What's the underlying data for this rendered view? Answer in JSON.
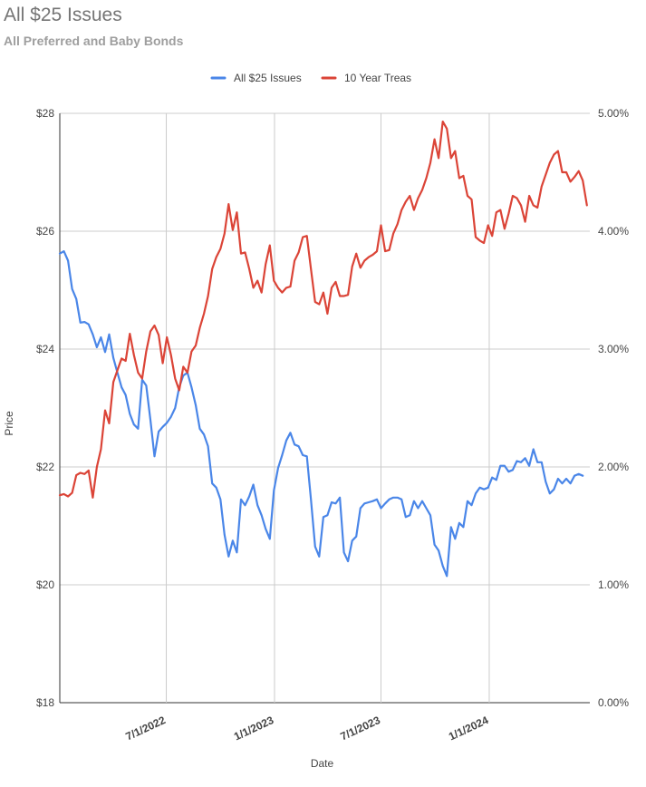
{
  "chart_data": {
    "type": "line",
    "title": "All $25 Issues",
    "subtitle": "All Preferred and Baby Bonds",
    "xlabel": "Date",
    "ylabel": "Price",
    "legend": "top",
    "grid": true,
    "x_range": [
      "2022-01-01",
      "2024-06-20"
    ],
    "x_ticks": [
      "7/1/2022",
      "1/1/2023",
      "7/1/2023",
      "1/1/2024"
    ],
    "y_left": {
      "range": [
        18,
        28
      ],
      "ticks": [
        "$18",
        "$20",
        "$22",
        "$24",
        "$26",
        "$28"
      ]
    },
    "y_right": {
      "range": [
        0.0,
        5.0
      ],
      "ticks": [
        "0.00%",
        "1.00%",
        "2.00%",
        "3.00%",
        "4.00%",
        "5.00%"
      ]
    },
    "series": [
      {
        "name": "All $25 Issues",
        "axis": "left",
        "color": "#4a86e8",
        "points": [
          [
            "2022-01-01",
            25.62
          ],
          [
            "2022-01-08",
            25.66
          ],
          [
            "2022-01-15",
            25.5
          ],
          [
            "2022-01-22",
            25.02
          ],
          [
            "2022-01-29",
            24.85
          ],
          [
            "2022-02-05",
            24.45
          ],
          [
            "2022-02-12",
            24.46
          ],
          [
            "2022-02-19",
            24.42
          ],
          [
            "2022-02-26",
            24.25
          ],
          [
            "2022-03-05",
            24.03
          ],
          [
            "2022-03-12",
            24.2
          ],
          [
            "2022-03-19",
            23.95
          ],
          [
            "2022-03-26",
            24.25
          ],
          [
            "2022-04-02",
            23.85
          ],
          [
            "2022-04-09",
            23.6
          ],
          [
            "2022-04-16",
            23.35
          ],
          [
            "2022-04-23",
            23.22
          ],
          [
            "2022-04-30",
            22.9
          ],
          [
            "2022-05-07",
            22.72
          ],
          [
            "2022-05-14",
            22.65
          ],
          [
            "2022-05-21",
            23.48
          ],
          [
            "2022-05-28",
            23.38
          ],
          [
            "2022-06-04",
            22.8
          ],
          [
            "2022-06-11",
            22.18
          ],
          [
            "2022-06-18",
            22.6
          ],
          [
            "2022-06-25",
            22.68
          ],
          [
            "2022-07-02",
            22.75
          ],
          [
            "2022-07-09",
            22.85
          ],
          [
            "2022-07-16",
            23.0
          ],
          [
            "2022-07-23",
            23.35
          ],
          [
            "2022-07-30",
            23.55
          ],
          [
            "2022-08-06",
            23.6
          ],
          [
            "2022-08-13",
            23.35
          ],
          [
            "2022-08-20",
            23.05
          ],
          [
            "2022-08-27",
            22.65
          ],
          [
            "2022-09-03",
            22.55
          ],
          [
            "2022-09-10",
            22.35
          ],
          [
            "2022-09-17",
            21.72
          ],
          [
            "2022-09-24",
            21.65
          ],
          [
            "2022-10-01",
            21.45
          ],
          [
            "2022-10-08",
            20.85
          ],
          [
            "2022-10-15",
            20.48
          ],
          [
            "2022-10-22",
            20.75
          ],
          [
            "2022-10-29",
            20.55
          ],
          [
            "2022-11-05",
            21.45
          ],
          [
            "2022-11-12",
            21.35
          ],
          [
            "2022-11-19",
            21.5
          ],
          [
            "2022-11-26",
            21.7
          ],
          [
            "2022-12-03",
            21.35
          ],
          [
            "2022-12-10",
            21.18
          ],
          [
            "2022-12-17",
            20.95
          ],
          [
            "2022-12-24",
            20.78
          ],
          [
            "2022-12-31",
            21.6
          ],
          [
            "2023-01-07",
            21.98
          ],
          [
            "2023-01-14",
            22.2
          ],
          [
            "2023-01-21",
            22.45
          ],
          [
            "2023-01-28",
            22.58
          ],
          [
            "2023-02-04",
            22.38
          ],
          [
            "2023-02-11",
            22.35
          ],
          [
            "2023-02-18",
            22.2
          ],
          [
            "2023-02-25",
            22.18
          ],
          [
            "2023-03-04",
            21.45
          ],
          [
            "2023-03-11",
            20.65
          ],
          [
            "2023-03-18",
            20.48
          ],
          [
            "2023-03-25",
            21.15
          ],
          [
            "2023-04-01",
            21.18
          ],
          [
            "2023-04-08",
            21.4
          ],
          [
            "2023-04-15",
            21.38
          ],
          [
            "2023-04-22",
            21.48
          ],
          [
            "2023-04-29",
            20.55
          ],
          [
            "2023-05-06",
            20.4
          ],
          [
            "2023-05-13",
            20.75
          ],
          [
            "2023-05-20",
            20.82
          ],
          [
            "2023-05-27",
            21.3
          ],
          [
            "2023-06-03",
            21.38
          ],
          [
            "2023-06-10",
            21.4
          ],
          [
            "2023-06-17",
            21.42
          ],
          [
            "2023-06-24",
            21.45
          ],
          [
            "2023-07-01",
            21.3
          ],
          [
            "2023-07-08",
            21.38
          ],
          [
            "2023-07-15",
            21.45
          ],
          [
            "2023-07-22",
            21.48
          ],
          [
            "2023-07-29",
            21.48
          ],
          [
            "2023-08-05",
            21.45
          ],
          [
            "2023-08-12",
            21.15
          ],
          [
            "2023-08-19",
            21.18
          ],
          [
            "2023-08-26",
            21.42
          ],
          [
            "2023-09-02",
            21.3
          ],
          [
            "2023-09-09",
            21.42
          ],
          [
            "2023-09-16",
            21.3
          ],
          [
            "2023-09-23",
            21.18
          ],
          [
            "2023-09-30",
            20.68
          ],
          [
            "2023-10-07",
            20.58
          ],
          [
            "2023-10-14",
            20.32
          ],
          [
            "2023-10-21",
            20.15
          ],
          [
            "2023-10-28",
            20.98
          ],
          [
            "2023-11-04",
            20.78
          ],
          [
            "2023-11-11",
            21.05
          ],
          [
            "2023-11-18",
            20.98
          ],
          [
            "2023-11-25",
            21.42
          ],
          [
            "2023-12-02",
            21.35
          ],
          [
            "2023-12-09",
            21.55
          ],
          [
            "2023-12-16",
            21.65
          ],
          [
            "2023-12-23",
            21.62
          ],
          [
            "2023-12-30",
            21.65
          ],
          [
            "2024-01-06",
            21.82
          ],
          [
            "2024-01-13",
            21.78
          ],
          [
            "2024-01-20",
            22.02
          ],
          [
            "2024-01-27",
            22.02
          ],
          [
            "2024-02-03",
            21.92
          ],
          [
            "2024-02-10",
            21.95
          ],
          [
            "2024-02-17",
            22.1
          ],
          [
            "2024-02-24",
            22.08
          ],
          [
            "2024-03-02",
            22.15
          ],
          [
            "2024-03-09",
            22.02
          ],
          [
            "2024-03-16",
            22.3
          ],
          [
            "2024-03-23",
            22.08
          ],
          [
            "2024-03-30",
            22.08
          ],
          [
            "2024-04-06",
            21.75
          ],
          [
            "2024-04-13",
            21.55
          ],
          [
            "2024-04-20",
            21.62
          ],
          [
            "2024-04-27",
            21.8
          ],
          [
            "2024-05-04",
            21.72
          ],
          [
            "2024-05-11",
            21.8
          ],
          [
            "2024-05-18",
            21.72
          ],
          [
            "2024-05-25",
            21.85
          ],
          [
            "2024-06-01",
            21.88
          ],
          [
            "2024-06-08",
            21.85
          ]
        ]
      },
      {
        "name": "10 Year Treas",
        "axis": "right",
        "color": "#db4437",
        "points": [
          [
            "2022-01-01",
            1.76
          ],
          [
            "2022-01-08",
            1.77
          ],
          [
            "2022-01-15",
            1.75
          ],
          [
            "2022-01-22",
            1.78
          ],
          [
            "2022-01-29",
            1.93
          ],
          [
            "2022-02-05",
            1.95
          ],
          [
            "2022-02-12",
            1.94
          ],
          [
            "2022-02-19",
            1.97
          ],
          [
            "2022-02-26",
            1.74
          ],
          [
            "2022-03-05",
            2.0
          ],
          [
            "2022-03-12",
            2.15
          ],
          [
            "2022-03-19",
            2.48
          ],
          [
            "2022-03-26",
            2.37
          ],
          [
            "2022-04-02",
            2.72
          ],
          [
            "2022-04-09",
            2.82
          ],
          [
            "2022-04-16",
            2.92
          ],
          [
            "2022-04-23",
            2.9
          ],
          [
            "2022-04-30",
            3.13
          ],
          [
            "2022-05-07",
            2.95
          ],
          [
            "2022-05-14",
            2.8
          ],
          [
            "2022-05-21",
            2.75
          ],
          [
            "2022-05-28",
            2.98
          ],
          [
            "2022-06-04",
            3.15
          ],
          [
            "2022-06-11",
            3.2
          ],
          [
            "2022-06-18",
            3.12
          ],
          [
            "2022-06-25",
            2.88
          ],
          [
            "2022-07-02",
            3.1
          ],
          [
            "2022-07-09",
            2.95
          ],
          [
            "2022-07-16",
            2.75
          ],
          [
            "2022-07-23",
            2.65
          ],
          [
            "2022-07-30",
            2.85
          ],
          [
            "2022-08-06",
            2.8
          ],
          [
            "2022-08-13",
            2.98
          ],
          [
            "2022-08-20",
            3.03
          ],
          [
            "2022-08-27",
            3.18
          ],
          [
            "2022-09-03",
            3.3
          ],
          [
            "2022-09-10",
            3.45
          ],
          [
            "2022-09-17",
            3.68
          ],
          [
            "2022-09-24",
            3.78
          ],
          [
            "2022-10-01",
            3.85
          ],
          [
            "2022-10-08",
            3.98
          ],
          [
            "2022-10-15",
            4.23
          ],
          [
            "2022-10-22",
            4.01
          ],
          [
            "2022-10-29",
            4.16
          ],
          [
            "2022-11-05",
            3.81
          ],
          [
            "2022-11-12",
            3.82
          ],
          [
            "2022-11-19",
            3.68
          ],
          [
            "2022-11-26",
            3.52
          ],
          [
            "2022-12-03",
            3.58
          ],
          [
            "2022-12-10",
            3.48
          ],
          [
            "2022-12-17",
            3.72
          ],
          [
            "2022-12-24",
            3.88
          ],
          [
            "2022-12-31",
            3.58
          ],
          [
            "2023-01-07",
            3.52
          ],
          [
            "2023-01-14",
            3.48
          ],
          [
            "2023-01-21",
            3.52
          ],
          [
            "2023-01-28",
            3.53
          ],
          [
            "2023-02-04",
            3.75
          ],
          [
            "2023-02-11",
            3.82
          ],
          [
            "2023-02-18",
            3.95
          ],
          [
            "2023-02-25",
            3.96
          ],
          [
            "2023-03-04",
            3.68
          ],
          [
            "2023-03-11",
            3.4
          ],
          [
            "2023-03-18",
            3.38
          ],
          [
            "2023-03-25",
            3.48
          ],
          [
            "2023-04-01",
            3.3
          ],
          [
            "2023-04-08",
            3.52
          ],
          [
            "2023-04-15",
            3.57
          ],
          [
            "2023-04-22",
            3.45
          ],
          [
            "2023-04-29",
            3.45
          ],
          [
            "2023-05-06",
            3.46
          ],
          [
            "2023-05-13",
            3.7
          ],
          [
            "2023-05-20",
            3.81
          ],
          [
            "2023-05-27",
            3.69
          ],
          [
            "2023-06-03",
            3.75
          ],
          [
            "2023-06-10",
            3.78
          ],
          [
            "2023-06-17",
            3.8
          ],
          [
            "2023-06-24",
            3.83
          ],
          [
            "2023-07-01",
            4.05
          ],
          [
            "2023-07-08",
            3.83
          ],
          [
            "2023-07-15",
            3.84
          ],
          [
            "2023-07-22",
            3.98
          ],
          [
            "2023-07-29",
            4.06
          ],
          [
            "2023-08-05",
            4.18
          ],
          [
            "2023-08-12",
            4.25
          ],
          [
            "2023-08-19",
            4.3
          ],
          [
            "2023-08-26",
            4.18
          ],
          [
            "2023-09-02",
            4.28
          ],
          [
            "2023-09-09",
            4.35
          ],
          [
            "2023-09-16",
            4.45
          ],
          [
            "2023-09-23",
            4.58
          ],
          [
            "2023-09-30",
            4.78
          ],
          [
            "2023-10-07",
            4.62
          ],
          [
            "2023-10-14",
            4.93
          ],
          [
            "2023-10-21",
            4.87
          ],
          [
            "2023-10-28",
            4.62
          ],
          [
            "2023-11-04",
            4.68
          ],
          [
            "2023-11-11",
            4.45
          ],
          [
            "2023-11-18",
            4.47
          ],
          [
            "2023-11-25",
            4.3
          ],
          [
            "2023-12-02",
            4.27
          ],
          [
            "2023-12-09",
            3.95
          ],
          [
            "2023-12-16",
            3.92
          ],
          [
            "2023-12-23",
            3.9
          ],
          [
            "2023-12-30",
            4.05
          ],
          [
            "2024-01-06",
            3.96
          ],
          [
            "2024-01-13",
            4.16
          ],
          [
            "2024-01-20",
            4.18
          ],
          [
            "2024-01-27",
            4.02
          ],
          [
            "2024-02-03",
            4.15
          ],
          [
            "2024-02-10",
            4.3
          ],
          [
            "2024-02-17",
            4.28
          ],
          [
            "2024-02-24",
            4.22
          ],
          [
            "2024-03-02",
            4.08
          ],
          [
            "2024-03-09",
            4.3
          ],
          [
            "2024-03-16",
            4.22
          ],
          [
            "2024-03-23",
            4.2
          ],
          [
            "2024-03-30",
            4.38
          ],
          [
            "2024-04-06",
            4.48
          ],
          [
            "2024-04-13",
            4.58
          ],
          [
            "2024-04-20",
            4.65
          ],
          [
            "2024-04-27",
            4.68
          ],
          [
            "2024-05-04",
            4.5
          ],
          [
            "2024-05-11",
            4.5
          ],
          [
            "2024-05-18",
            4.42
          ],
          [
            "2024-05-25",
            4.46
          ],
          [
            "2024-06-01",
            4.51
          ],
          [
            "2024-06-08",
            4.43
          ],
          [
            "2024-06-15",
            4.22
          ]
        ]
      }
    ]
  }
}
